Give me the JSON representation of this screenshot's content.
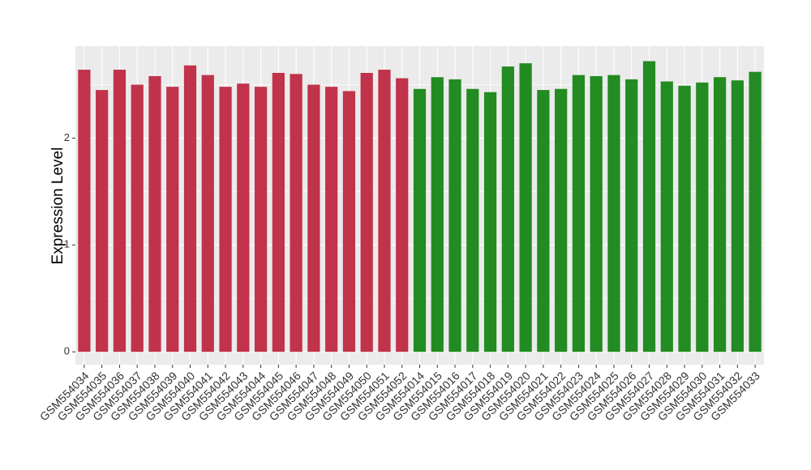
{
  "chart_data": {
    "type": "bar",
    "y_label": "Expression Level",
    "categories": [
      "GSM554034",
      "GSM554035",
      "GSM554036",
      "GSM554037",
      "GSM554038",
      "GSM554039",
      "GSM554040",
      "GSM554041",
      "GSM554042",
      "GSM554043",
      "GSM554044",
      "GSM554045",
      "GSM554046",
      "GSM554047",
      "GSM554048",
      "GSM554049",
      "GSM554050",
      "GSM554051",
      "GSM554052",
      "GSM554014",
      "GSM554015",
      "GSM554016",
      "GSM554017",
      "GSM554018",
      "GSM554019",
      "GSM554020",
      "GSM554021",
      "GSM554022",
      "GSM554023",
      "GSM554024",
      "GSM554025",
      "GSM554026",
      "GSM554027",
      "GSM554028",
      "GSM554029",
      "GSM554030",
      "GSM554031",
      "GSM554032",
      "GSM554033"
    ],
    "values": [
      2.64,
      2.45,
      2.64,
      2.5,
      2.58,
      2.48,
      2.68,
      2.59,
      2.48,
      2.51,
      2.48,
      2.61,
      2.6,
      2.5,
      2.48,
      2.44,
      2.61,
      2.64,
      2.56,
      2.46,
      2.57,
      2.55,
      2.46,
      2.43,
      2.67,
      2.7,
      2.45,
      2.46,
      2.59,
      2.58,
      2.59,
      2.55,
      2.72,
      2.53,
      2.49,
      2.52,
      2.57,
      2.54,
      2.62
    ],
    "colors": [
      "#c0334a",
      "#c0334a",
      "#c0334a",
      "#c0334a",
      "#c0334a",
      "#c0334a",
      "#c0334a",
      "#c0334a",
      "#c0334a",
      "#c0334a",
      "#c0334a",
      "#c0334a",
      "#c0334a",
      "#c0334a",
      "#c0334a",
      "#c0334a",
      "#c0334a",
      "#c0334a",
      "#c0334a",
      "#228b22",
      "#228b22",
      "#228b22",
      "#228b22",
      "#228b22",
      "#228b22",
      "#228b22",
      "#228b22",
      "#228b22",
      "#228b22",
      "#228b22",
      "#228b22",
      "#228b22",
      "#228b22",
      "#228b22",
      "#228b22",
      "#228b22",
      "#228b22",
      "#228b22",
      "#228b22"
    ],
    "ylim": [
      -0.12,
      2.86
    ],
    "yticks": [
      0,
      1,
      2
    ],
    "grid": true
  }
}
